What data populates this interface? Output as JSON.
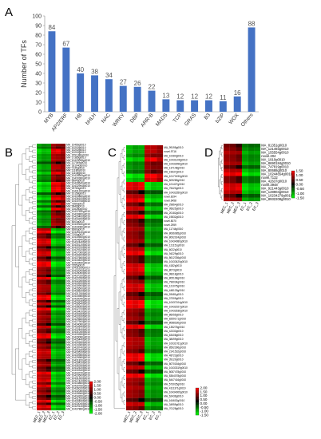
{
  "figure": {
    "panel_labels": {
      "a": "A",
      "b": "B",
      "c": "C",
      "d": "D"
    }
  },
  "chart_data": [
    {
      "type": "bar",
      "panel": "A",
      "ylabel": "Number of TFs",
      "ylim": [
        0,
        100
      ],
      "yticks": [
        0,
        10,
        20,
        30,
        40,
        50,
        60,
        70,
        80,
        90,
        100
      ],
      "categories": [
        "MYB",
        "AP2/ERF",
        "HB",
        "bHLH",
        "NAC",
        "WRKY",
        "DBP",
        "ARR-B",
        "MADS",
        "TCP",
        "GRAS",
        "B3",
        "bZIP",
        "WOX",
        "Others"
      ],
      "values": [
        84,
        67,
        40,
        38,
        34,
        27,
        26,
        22,
        13,
        12,
        12,
        12,
        11,
        16,
        88
      ],
      "color": "#4472c4",
      "grid": false,
      "legend": "none"
    },
    {
      "type": "heatmap",
      "panel": "B",
      "columns": [
        "MEC_1",
        "MEC_2",
        "MEC_3",
        "EC_1",
        "EC_2",
        "EC_3"
      ],
      "colorbar": {
        "ticks": [
          "2.00",
          "1.50",
          "1.00",
          "0.50",
          "0.00",
          "-0.50",
          "-1.00",
          "-1.50",
          "-2.00"
        ],
        "high": "#ff0000",
        "mid": "#000000",
        "low": "#00ff00"
      },
      "rows": [
        "MA_10466g0010",
        "MA_10202g0010",
        "MA_10202g0010",
        "MA_10202g0010",
        "MA_9791380g0010",
        "MA_17385g0010",
        "MA_10429008g0010",
        "MA_117049g0010",
        "MA_181040g0010",
        "MA_7145g0010",
        "MA_11180g0010",
        "MA_11108g0010",
        "MA_10428905g0010",
        "MA_10430380g0010",
        "MA_6994g0010",
        "MA_10433640g0010",
        "MA_10432994g0010",
        "MA_29783g0010",
        "MA_10431200g0010",
        "MA_10158g0010",
        "MA_10433660g0010",
        "MA_10436100g0010",
        "MA_10430708g0010",
        "MA_7359g0010",
        "MA_9946g0010",
        "MA_135280g0010",
        "MA_10437540g0010",
        "MA_10430800g0010",
        "MA_10429400g0010",
        "MA_10434200g0010",
        "MA_5003g0010",
        "MA_10430180g0010",
        "MA_10433080g0010",
        "MA_8380g0010",
        "MA_10426140g0010",
        "MA_7100g0010",
        "MA_10430560g0010",
        "MA_10434640g0010",
        "MA_10432440g0010",
        "MA_10430120g0010",
        "MA_10433700g0010",
        "MA_10429320g0010",
        "MA_10427060g0010",
        "MA_10428300g0010",
        "MA_10437660g0010",
        "MA_10434520g0010",
        "MA_10433460g0010",
        "MA_7355g0010",
        "MA_10431160g0010",
        "MA_10432000g0010",
        "MA_10428060g0010",
        "MA_10437020g0010",
        "MA_10429780g0010",
        "MA_10432260g0010",
        "MA_10433920g0010",
        "MA_10430900g0010",
        "MA_10426500g0010",
        "MA_10428520g0010",
        "MA_10431760g0010",
        "MA_10434980g0010",
        "MA_10430040g0010",
        "MA_10429240g0010",
        "MA_10436640g0010",
        "MA_10435000g0010",
        "MA_10432700g0010",
        "MA_10430420g0010",
        "MA_10428180g0010",
        "MA_10433160g0010",
        "MA_10429660g0010",
        "MA_10427900g0010",
        "MA_10434080g0010",
        "MA_10430640g0010",
        "MA_10432840g0010",
        "MA_10431040g0010",
        "MA_10433280g0010",
        "MA_10429080g0010",
        "MA_10435440g0010",
        "MA_10430260g0010",
        "MA_10434380g0010",
        "MA_10428740g0010",
        "MA_10432180g0010",
        "MA_10433520g0010",
        "MA_10430980g0010",
        "MA_10429980g0010",
        "MA_10431820g0010",
        "MA_10428420g0010",
        "MA_10435760g0010",
        "MA_10432520g0010",
        "MA_10430340g0010",
        "MA_10434720g0010",
        "MA_10429500g0010",
        "MA_10431300g0010",
        "MA_10427420g0010",
        "MA_10433860g0010",
        "MA_10430760g0010",
        "MA_10436020g0010",
        "MA_10432080g0010",
        "MA_10428960g0010",
        "MA_10434260g0010",
        "MA_10431520g0010",
        "MA_10430460g0010",
        "MA_10433040g0010",
        "MA_10429140g0010",
        "MA_10437880g0010"
      ]
    },
    {
      "type": "heatmap",
      "panel": "C",
      "columns": [
        "MEC_1",
        "MEC_2",
        "MEC_3",
        "EC_1",
        "EC_2",
        "EC_3"
      ],
      "colorbar": {
        "ticks": [
          "2.00",
          "1.50",
          "1.00",
          "0.50",
          "0.00",
          "-0.50",
          "-1.00",
          "-1.50"
        ],
        "high": "#ff0000",
        "mid": "#000000",
        "low": "#00ff00"
      },
      "rows": [
        "MA_99195g0010",
        "novel.9716",
        "MA_10284g0010",
        "MA_10431109g0010",
        "MA_10433096g0010",
        "MA_137148g0010",
        "MA_19637g0010",
        "MA_10170190g0010",
        "MA_509289g0010",
        "MA_101427g0010",
        "MA_75420g0010",
        "MA_10432350g0010",
        "novel.8194",
        "novel.6458",
        "MA_29864g0010",
        "MA_95625g0010",
        "MA_20182g0010",
        "MA_19832g0010",
        "novel.8070",
        "novel.2959",
        "MA_11744g0010",
        "MA_8066085g0010",
        "MA_8092024g0010",
        "MA_10434080g0010",
        "MA_121151g0010",
        "MA_6022g0010",
        "MA_94229g0010",
        "MA_8612336g0010",
        "MA_10433420g0010",
        "MA_4182g0010",
        "MA_8073g0010",
        "MA_98318g0010",
        "MA_805198g0010",
        "MA_796034g0010",
        "MA_121075g0010",
        "MA_448133g0010",
        "MA_93481g0010",
        "MA_37309g0010",
        "MA_10437104g0010",
        "MA_10432027g0010",
        "MA_10432636g0010",
        "MA_86055g0010",
        "MA_8259171g0010",
        "MA_8088180g0010",
        "MA_135276g0010",
        "MA_42333g0010",
        "MA_63408g0010",
        "MA_38499g0010",
        "MA_10031761g0010",
        "MA_8592396g0010",
        "MA_2141532g0010",
        "MA_48723g0010",
        "MA_39120g0010",
        "MA_8070184g0010",
        "MA_10433319g0010",
        "MA_8087478g0010",
        "MA_8364078g0010",
        "MA_8447416g0010",
        "MA_573025g0010",
        "MA_4111371g0010",
        "MA_10434009g0010",
        "MA_62436g0010",
        "MA_164602g0010",
        "MA_34959g0010",
        "MA_70128g0010"
      ]
    },
    {
      "type": "heatmap",
      "panel": "D",
      "columns": [
        "MEC_1",
        "MEC_2",
        "MEC_3",
        "EC_1",
        "EC_2",
        "EC_3"
      ],
      "colorbar": {
        "ticks": [
          "1.50",
          "1.00",
          "0.50",
          "0.00",
          "-0.50",
          "-1.00",
          "-1.50"
        ],
        "high": "#ff0000",
        "mid": "#000000",
        "low": "#00ff00"
      },
      "rows": [
        "MA_81351g0010",
        "MA_121493g0010",
        "MA_155554g0010",
        "novel.204",
        "MA_1910g0010",
        "MA_8690184g0010",
        "MA_747819g0010",
        "MA_80688g0010",
        "MA_10244654g0010",
        "novel.7132",
        "MA_42637g0010",
        "novel.3948",
        "MA_921443g0010",
        "MA_128904g0010",
        "MA_10234279g0010",
        "MA_8932208g0010"
      ]
    }
  ]
}
